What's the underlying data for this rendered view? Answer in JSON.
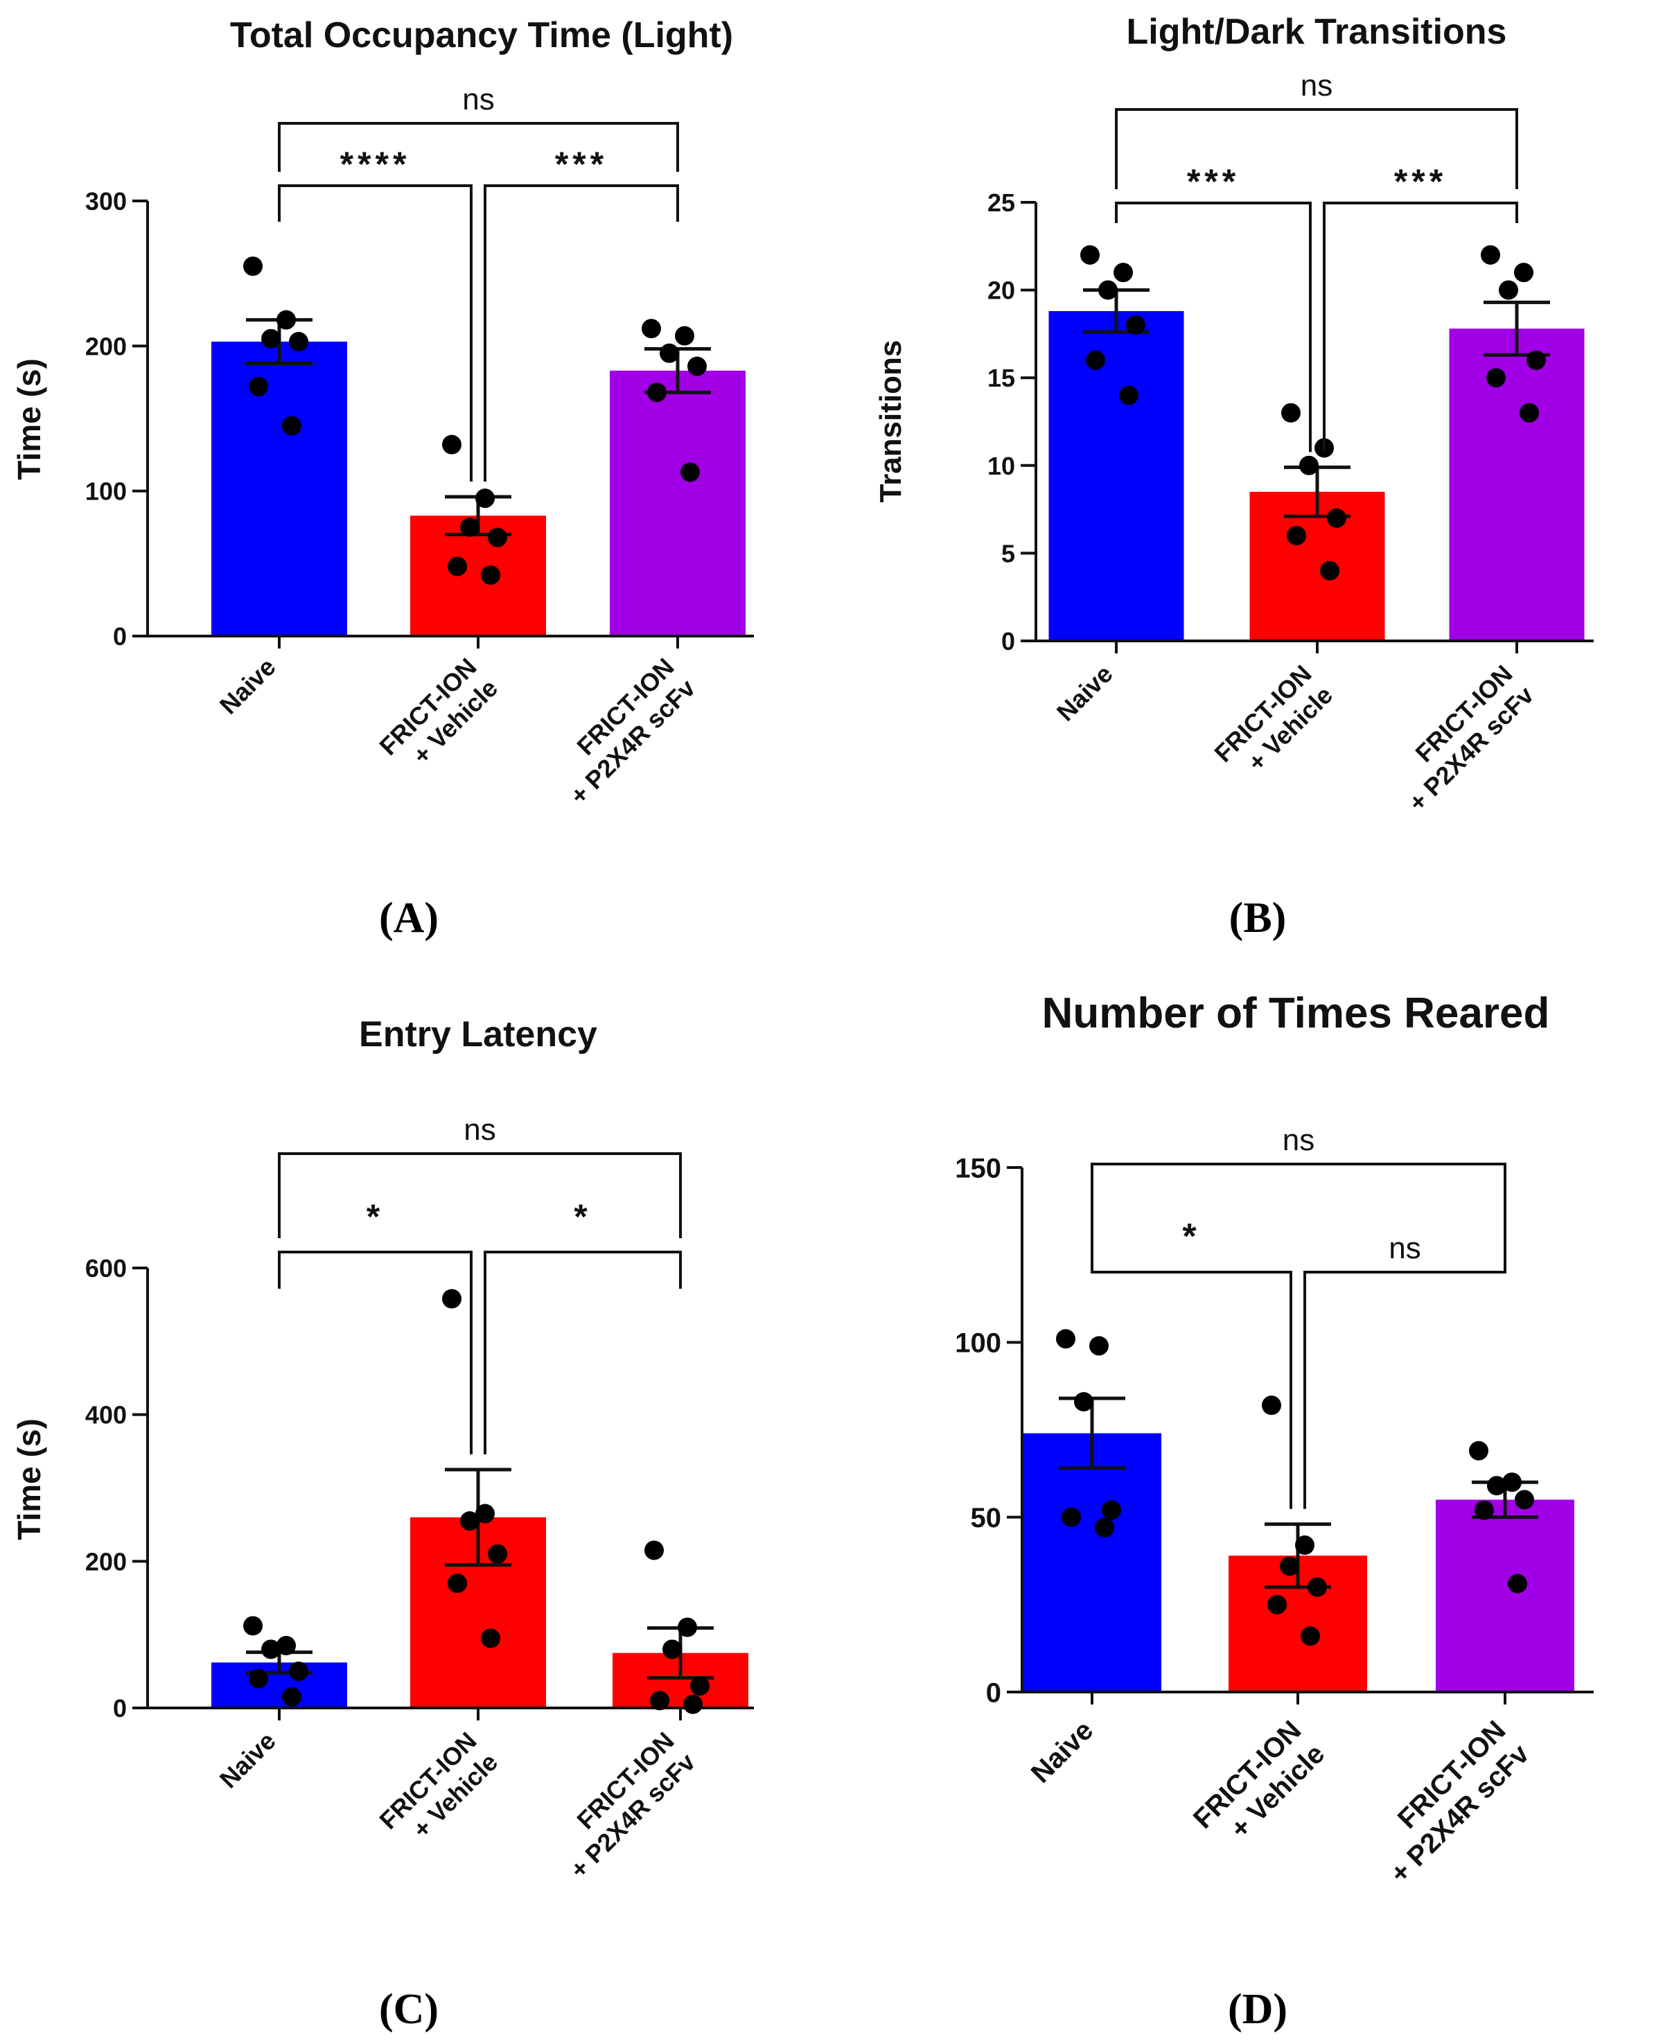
{
  "chart_data": [
    {
      "id": "A",
      "panel_label": "(A)",
      "type": "bar",
      "title": "Total  Occupancy Time (Light)",
      "xlabel": "",
      "ylabel": "Time  (s)",
      "ylim": [
        0,
        300
      ],
      "yticks": [
        0,
        100,
        200,
        300
      ],
      "yticklabels": [
        "0",
        "100",
        "200",
        "300"
      ],
      "categories": [
        [
          "Naive"
        ],
        [
          "FRICT-ION",
          "+ Vehicle"
        ],
        [
          "FRICT-ION",
          "+ P2X4R scFv"
        ]
      ],
      "colors": [
        "#0000ff",
        "#ff0000",
        "#a100e6"
      ],
      "values": [
        203,
        83,
        183
      ],
      "sem": [
        15,
        13,
        15
      ],
      "points": [
        [
          255,
          218,
          205,
          203,
          172,
          145
        ],
        [
          132,
          95,
          75,
          68,
          48,
          42
        ],
        [
          212,
          207,
          195,
          186,
          168,
          113
        ]
      ],
      "comparisons": [
        {
          "from": 0,
          "to": 1,
          "label": "****"
        },
        {
          "from": 1,
          "to": 2,
          "label": "***"
        },
        {
          "from": 0,
          "to": 2,
          "label": "ns"
        }
      ]
    },
    {
      "id": "B",
      "panel_label": "(B)",
      "type": "bar",
      "title": "Light/Dark Transitions",
      "xlabel": "",
      "ylabel": "Transitions",
      "ylim": [
        0,
        25
      ],
      "yticks": [
        0,
        5,
        10,
        15,
        20,
        25
      ],
      "yticklabels": [
        "0",
        "5",
        "10",
        "15",
        "20",
        "25"
      ],
      "categories": [
        [
          "Naive"
        ],
        [
          "FRICT-ION",
          "+ Vehicle"
        ],
        [
          "FRICT-ION",
          "+ P2X4R scFv"
        ]
      ],
      "colors": [
        "#0000ff",
        "#ff0000",
        "#a100e6"
      ],
      "values": [
        18.8,
        8.5,
        17.8
      ],
      "sem": [
        1.2,
        1.4,
        1.5
      ],
      "points": [
        [
          22,
          21,
          20,
          18,
          16,
          14
        ],
        [
          13,
          11,
          10,
          7,
          6,
          4
        ],
        [
          22,
          21,
          20,
          16,
          15,
          13
        ]
      ],
      "comparisons": [
        {
          "from": 0,
          "to": 1,
          "label": "***"
        },
        {
          "from": 1,
          "to": 2,
          "label": "***"
        },
        {
          "from": 0,
          "to": 2,
          "label": "ns"
        }
      ]
    },
    {
      "id": "C",
      "panel_label": "(C)",
      "type": "bar",
      "title": "Entry Latency",
      "xlabel": "",
      "ylabel": "Time  (s)",
      "ylim": [
        0,
        600
      ],
      "yticks": [
        0,
        200,
        400,
        600
      ],
      "yticklabels": [
        "0",
        "200",
        "400",
        "600"
      ],
      "categories": [
        [
          "Naive"
        ],
        [
          "FRICT-ION",
          "+ Vehicle"
        ],
        [
          "FRICT-ION",
          "+ P2X4R scFv"
        ]
      ],
      "colors": [
        "#0000ff",
        "#ff0000",
        "#ff0000"
      ],
      "values": [
        62,
        260,
        75
      ],
      "sem": [
        14,
        65,
        34
      ],
      "points": [
        [
          112,
          85,
          80,
          50,
          40,
          15
        ],
        [
          558,
          265,
          255,
          210,
          170,
          95
        ],
        [
          215,
          110,
          80,
          30,
          10,
          5
        ]
      ],
      "comparisons": [
        {
          "from": 0,
          "to": 1,
          "label": "*"
        },
        {
          "from": 1,
          "to": 2,
          "label": "*"
        },
        {
          "from": 0,
          "to": 2,
          "label": "ns"
        }
      ]
    },
    {
      "id": "D",
      "panel_label": "(D)",
      "type": "bar",
      "title": "Number of Times Reared",
      "xlabel": "",
      "ylabel": "",
      "ylim": [
        0,
        150
      ],
      "yticks": [
        0,
        50,
        100,
        150
      ],
      "yticklabels": [
        "0",
        "50",
        "100",
        "150"
      ],
      "categories": [
        [
          "Naive"
        ],
        [
          "FRICT-ION",
          "+ Vehicle"
        ],
        [
          "FRICT-ION",
          "+ P2X4R scFv"
        ]
      ],
      "colors": [
        "#0000ff",
        "#ff0000",
        "#a100e6"
      ],
      "values": [
        74,
        39,
        55
      ],
      "sem": [
        10,
        9,
        5
      ],
      "points": [
        [
          101,
          99,
          83,
          52,
          50,
          47
        ],
        [
          82,
          42,
          36,
          30,
          25,
          16
        ],
        [
          69,
          60,
          59,
          55,
          52,
          31
        ]
      ],
      "comparisons": [
        {
          "from": 0,
          "to": 1,
          "label": "*"
        },
        {
          "from": 1,
          "to": 2,
          "label": "ns"
        },
        {
          "from": 0,
          "to": 2,
          "label": "ns"
        }
      ]
    }
  ]
}
